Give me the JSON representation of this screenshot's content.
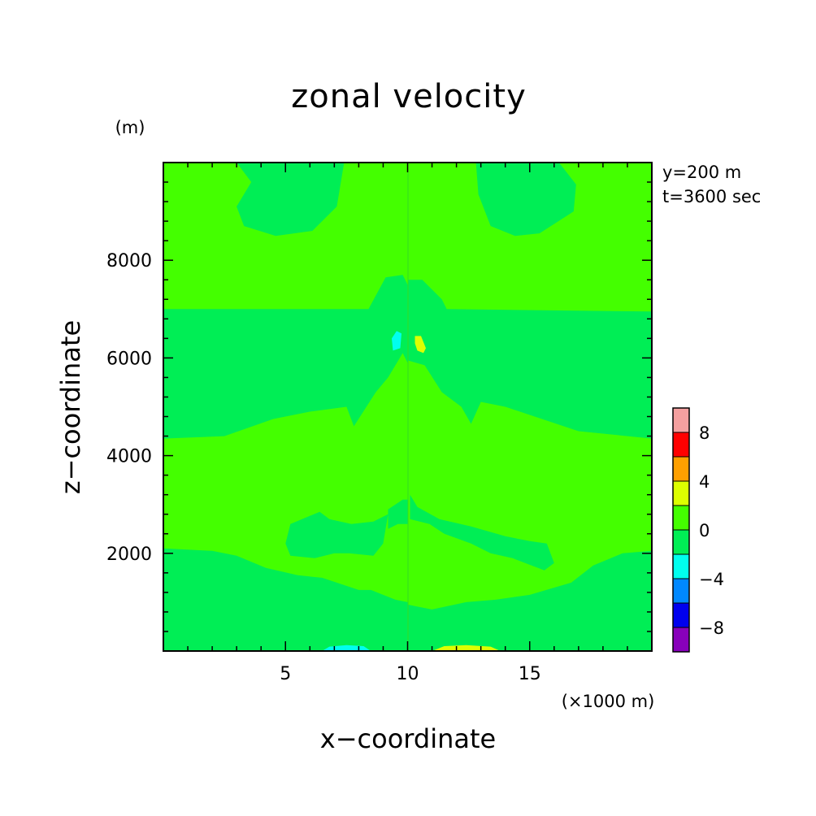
{
  "chart_data": {
    "type": "contour",
    "title": "zonal velocity",
    "xlabel": "x−coordinate",
    "ylabel": "z−coordinate",
    "x_unit": "(×1000 m)",
    "y_unit": "(m)",
    "info_lines": [
      "y=200 m",
      "t=3600 sec"
    ],
    "xlim": [
      0,
      20
    ],
    "ylim": [
      0,
      10000
    ],
    "x_ticks": [
      {
        "value": 5,
        "label": "5"
      },
      {
        "value": 10,
        "label": "10"
      },
      {
        "value": 15,
        "label": "15"
      }
    ],
    "y_ticks": [
      {
        "value": 2000,
        "label": "2000"
      },
      {
        "value": 4000,
        "label": "4000"
      },
      {
        "value": 6000,
        "label": "6000"
      },
      {
        "value": 8000,
        "label": "8000"
      }
    ],
    "background_level": "0 to 2",
    "regions": [
      {
        "name": "upper-left-lobe",
        "level": "-2 to 0",
        "points": [
          [
            3.0,
            10000
          ],
          [
            7.4,
            10000
          ],
          [
            7.1,
            9100
          ],
          [
            6.1,
            8600
          ],
          [
            4.6,
            8500
          ],
          [
            3.3,
            8700
          ],
          [
            3.0,
            9100
          ],
          [
            3.6,
            9600
          ]
        ]
      },
      {
        "name": "upper-right-lobe",
        "level": "-2 to 0",
        "points": [
          [
            12.8,
            10000
          ],
          [
            16.2,
            10000
          ],
          [
            16.9,
            9550
          ],
          [
            16.8,
            9000
          ],
          [
            15.4,
            8550
          ],
          [
            14.4,
            8500
          ],
          [
            13.4,
            8700
          ],
          [
            12.9,
            9350
          ]
        ]
      },
      {
        "name": "middle-band",
        "level": "-2 to 0",
        "points": [
          [
            0,
            7000
          ],
          [
            8.4,
            7000
          ],
          [
            9.1,
            7650
          ],
          [
            9.8,
            7700
          ],
          [
            10,
            7500
          ],
          [
            10,
            5900
          ],
          [
            9.8,
            6100
          ],
          [
            9.2,
            5600
          ],
          [
            8.7,
            5300
          ],
          [
            7.8,
            4600
          ],
          [
            7.5,
            5000
          ],
          [
            6.0,
            4900
          ],
          [
            4.5,
            4750
          ],
          [
            2.5,
            4400
          ],
          [
            0,
            4350
          ],
          [
            0,
            4800
          ]
        ]
      },
      {
        "name": "center-right-mid",
        "level": "-2 to 0",
        "points": [
          [
            10,
            7600
          ],
          [
            10.6,
            7600
          ],
          [
            11.4,
            7200
          ],
          [
            11.6,
            7000
          ],
          [
            20,
            6950
          ],
          [
            20,
            4350
          ],
          [
            17.0,
            4500
          ],
          [
            15.2,
            4800
          ],
          [
            14.0,
            5000
          ],
          [
            13.0,
            5100
          ],
          [
            12.6,
            4650
          ],
          [
            12.2,
            5000
          ],
          [
            11.4,
            5300
          ],
          [
            10.7,
            5850
          ],
          [
            10,
            5950
          ]
        ]
      },
      {
        "name": "left-mid-lower",
        "level": "-2 to 0",
        "points": [
          [
            5.2,
            2600
          ],
          [
            6.4,
            2850
          ],
          [
            6.8,
            2700
          ],
          [
            7.7,
            2600
          ],
          [
            8.6,
            2650
          ],
          [
            9.2,
            2800
          ],
          [
            9.0,
            2200
          ],
          [
            8.6,
            1950
          ],
          [
            7.6,
            2000
          ],
          [
            7.0,
            2000
          ],
          [
            6.2,
            1900
          ],
          [
            5.2,
            1950
          ],
          [
            5.0,
            2200
          ]
        ]
      },
      {
        "name": "center-left-lower",
        "level": "-2 to 0",
        "points": [
          [
            9.2,
            2900
          ],
          [
            9.8,
            3100
          ],
          [
            10,
            3100
          ],
          [
            10,
            1000
          ],
          [
            9.5,
            1050
          ],
          [
            9.0,
            1150
          ],
          [
            8.5,
            1250
          ],
          [
            8.0,
            1250
          ],
          [
            6.5,
            1500
          ],
          [
            5.5,
            1550
          ],
          [
            4.2,
            1700
          ],
          [
            3.0,
            1950
          ],
          [
            2.0,
            2050
          ],
          [
            0,
            2100
          ],
          [
            0,
            0
          ],
          [
            10,
            0
          ],
          [
            10,
            2600
          ],
          [
            9.6,
            2600
          ],
          [
            9.2,
            2500
          ]
        ]
      },
      {
        "name": "right-lower",
        "level": "-2 to 0",
        "points": [
          [
            10.1,
            2700
          ],
          [
            10.9,
            2600
          ],
          [
            11.5,
            2400
          ],
          [
            12.6,
            2200
          ],
          [
            13.4,
            2000
          ],
          [
            14.3,
            1900
          ],
          [
            15.6,
            1650
          ],
          [
            16.0,
            1800
          ],
          [
            15.7,
            2200
          ],
          [
            15.0,
            2250
          ],
          [
            14.0,
            2350
          ],
          [
            12.6,
            2550
          ],
          [
            11.3,
            2700
          ],
          [
            10.4,
            2950
          ],
          [
            10.1,
            3200
          ]
        ]
      },
      {
        "name": "right-bottom",
        "level": "-2 to 0",
        "points": [
          [
            10,
            950
          ],
          [
            11.0,
            850
          ],
          [
            12.4,
            1000
          ],
          [
            13.6,
            1050
          ],
          [
            15.0,
            1150
          ],
          [
            16.7,
            1400
          ],
          [
            17.6,
            1750
          ],
          [
            18.8,
            2000
          ],
          [
            20,
            2050
          ],
          [
            20,
            0
          ],
          [
            10,
            0
          ]
        ]
      },
      {
        "name": "cyan-cell-mid",
        "level": "-4 to -2",
        "points": [
          [
            9.4,
            6150
          ],
          [
            9.7,
            6200
          ],
          [
            9.75,
            6500
          ],
          [
            9.55,
            6550
          ],
          [
            9.35,
            6400
          ]
        ]
      },
      {
        "name": "yellow-cell-mid",
        "level": "2 to 4",
        "points": [
          [
            10.3,
            6450
          ],
          [
            10.55,
            6450
          ],
          [
            10.75,
            6200
          ],
          [
            10.65,
            6100
          ],
          [
            10.4,
            6150
          ],
          [
            10.3,
            6300
          ]
        ]
      },
      {
        "name": "cyan-cell-bottom",
        "level": "-4 to -2",
        "points": [
          [
            6.5,
            0
          ],
          [
            8.5,
            0
          ],
          [
            8.2,
            100
          ],
          [
            7.5,
            120
          ],
          [
            6.8,
            90
          ]
        ]
      },
      {
        "name": "yellow-cell-bottom",
        "level": "2 to 4",
        "points": [
          [
            11.0,
            0
          ],
          [
            13.8,
            0
          ],
          [
            13.4,
            90
          ],
          [
            12.4,
            120
          ],
          [
            11.5,
            100
          ]
        ]
      }
    ],
    "colorbar": {
      "bins": [
        {
          "range": "8 to 10",
          "color": "#F5A0A0"
        },
        {
          "range": "6 to 8",
          "color": "#FF0000"
        },
        {
          "range": "4 to 6",
          "color": "#FFA000"
        },
        {
          "range": "2 to 4",
          "color": "#DDFF00"
        },
        {
          "range": "0 to 2",
          "color": "#44FF00"
        },
        {
          "range": "-2 to 0",
          "color": "#00EE55"
        },
        {
          "range": "-4 to -2",
          "color": "#00FFEE"
        },
        {
          "range": "-6 to -4",
          "color": "#0088FF"
        },
        {
          "range": "-8 to -6",
          "color": "#0000EE"
        },
        {
          "range": "-10 to -8",
          "color": "#8800BB"
        }
      ],
      "tick_labels": [
        "8",
        "4",
        "0",
        "−4",
        "−8"
      ]
    }
  }
}
